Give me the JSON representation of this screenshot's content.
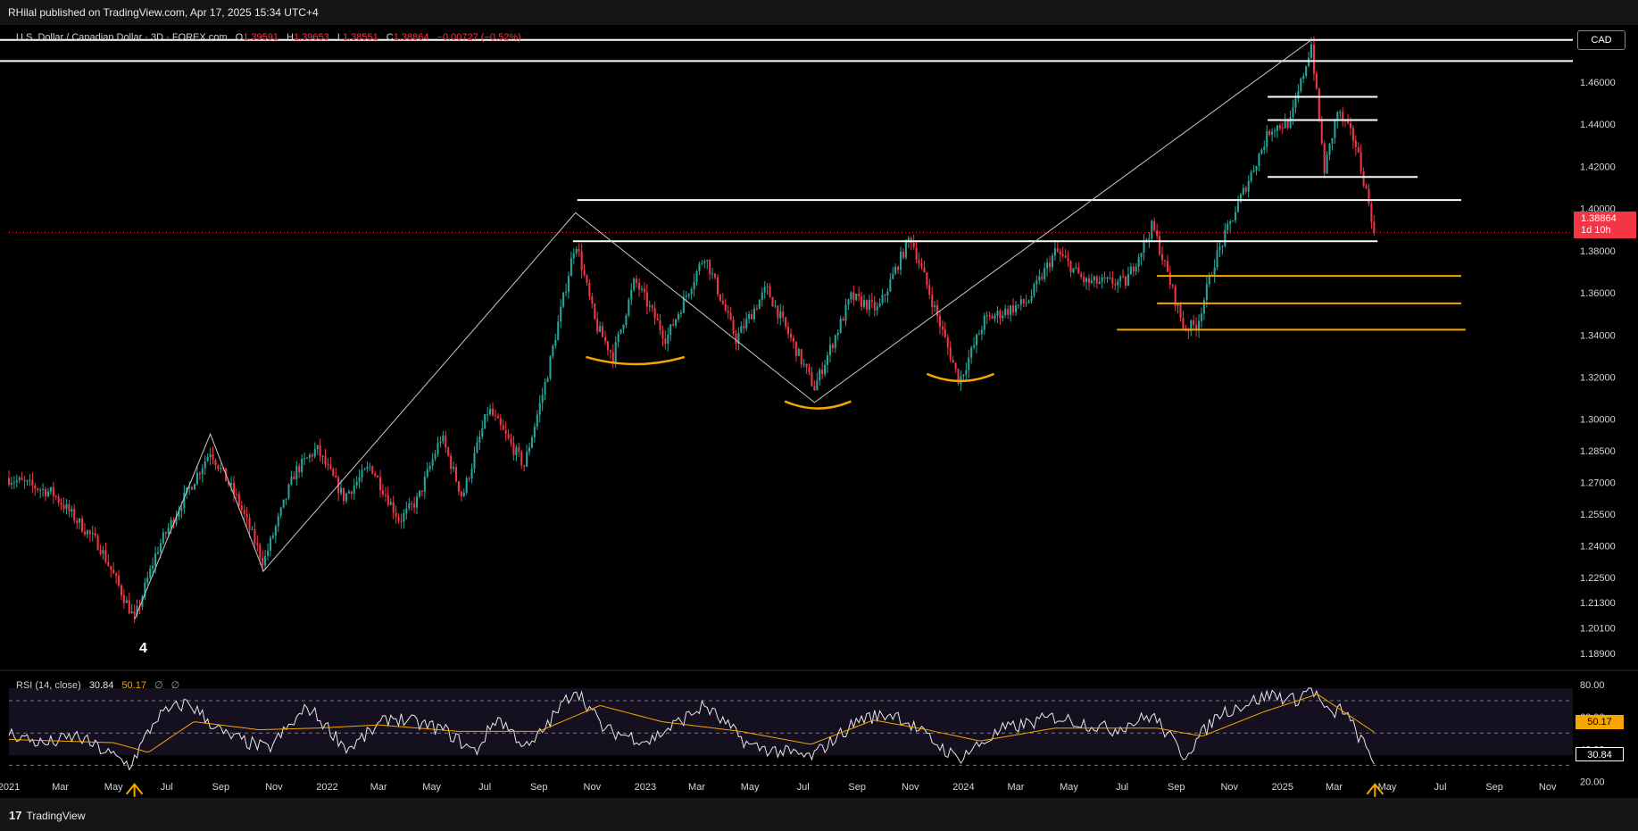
{
  "header": {
    "published": "RHilal published on TradingView.com, Apr 17, 2025 15:34 UTC+4"
  },
  "legend": {
    "symbol": "U.S. Dollar / Canadian Dollar · 3D · FOREX.com",
    "open_label": "O",
    "open": "1.39591",
    "high_label": "H",
    "high": "1.39653",
    "low_label": "L",
    "low": "1.38551",
    "close_label": "C",
    "close": "1.38864",
    "change": "−0.00727 (−0.52%)"
  },
  "currency": "CAD",
  "price_tag": {
    "price": "1.38864",
    "countdown": "1d 10h"
  },
  "wave_label": "4",
  "rsi_panel": {
    "label": "RSI (14, close)",
    "rsi_value": "30.84",
    "ma_value": "50.17",
    "extra_1": "∅",
    "extra_2": "∅",
    "levels": [
      70,
      50,
      30
    ]
  },
  "footer": {
    "brand": "TradingView",
    "logo": "17"
  },
  "colors": {
    "up": "#26a69a",
    "down": "#f23645",
    "support": "#f7a600",
    "rsi_line": "#e8e8e8",
    "rsi_ma": "#f7a600",
    "background": "#000000"
  },
  "chart_data": [
    {
      "type": "candlestick",
      "title": "U.S. Dollar / Canadian Dollar · 3D · FOREX.com",
      "x_range": [
        "2021-01-01",
        "2025-11-30"
      ],
      "y_range": [
        1.183,
        1.482
      ],
      "y_ticks": [
        "1.46000",
        "1.44000",
        "1.42000",
        "1.40000",
        "1.38000",
        "1.36000",
        "1.34000",
        "1.32000",
        "1.30000",
        "1.28500",
        "1.27000",
        "1.25500",
        "1.24000",
        "1.22500",
        "1.21300",
        "1.20100",
        "1.18900"
      ],
      "x_ticks": [
        "2021",
        "Mar",
        "May",
        "Jul",
        "Sep",
        "Nov",
        "2022",
        "Mar",
        "May",
        "Jul",
        "Sep",
        "Nov",
        "2023",
        "Mar",
        "May",
        "Jul",
        "Sep",
        "Nov",
        "2024",
        "Mar",
        "May",
        "Jul",
        "Sep",
        "Nov",
        "2025",
        "Mar",
        "May",
        "Jul",
        "Sep",
        "Nov"
      ],
      "anchors": [
        [
          "2021-01-01",
          1.272
        ],
        [
          "2021-02-20",
          1.265
        ],
        [
          "2021-03-20",
          1.252
        ],
        [
          "2021-04-15",
          1.24
        ],
        [
          "2021-05-25",
          1.205
        ],
        [
          "2021-06-20",
          1.238
        ],
        [
          "2021-07-20",
          1.262
        ],
        [
          "2021-08-20",
          1.285
        ],
        [
          "2021-09-20",
          1.262
        ],
        [
          "2021-10-20",
          1.232
        ],
        [
          "2021-11-25",
          1.275
        ],
        [
          "2021-12-20",
          1.286
        ],
        [
          "2022-01-20",
          1.263
        ],
        [
          "2022-02-20",
          1.278
        ],
        [
          "2022-03-25",
          1.252
        ],
        [
          "2022-04-15",
          1.262
        ],
        [
          "2022-05-12",
          1.292
        ],
        [
          "2022-06-05",
          1.263
        ],
        [
          "2022-07-05",
          1.305
        ],
        [
          "2022-08-15",
          1.278
        ],
        [
          "2022-09-10",
          1.32
        ],
        [
          "2022-10-13",
          1.385
        ],
        [
          "2022-11-05",
          1.345
        ],
        [
          "2022-11-25",
          1.33
        ],
        [
          "2022-12-20",
          1.366
        ],
        [
          "2023-01-25",
          1.338
        ],
        [
          "2023-03-10",
          1.378
        ],
        [
          "2023-04-15",
          1.338
        ],
        [
          "2023-05-20",
          1.362
        ],
        [
          "2023-07-14",
          1.315
        ],
        [
          "2023-08-25",
          1.358
        ],
        [
          "2023-09-25",
          1.352
        ],
        [
          "2023-11-01",
          1.387
        ],
        [
          "2023-12-27",
          1.318
        ],
        [
          "2024-01-25",
          1.347
        ],
        [
          "2024-03-15",
          1.356
        ],
        [
          "2024-04-16",
          1.38
        ],
        [
          "2024-05-20",
          1.365
        ],
        [
          "2024-07-05",
          1.365
        ],
        [
          "2024-08-05",
          1.392
        ],
        [
          "2024-09-10",
          1.343
        ],
        [
          "2024-09-25",
          1.345
        ],
        [
          "2024-10-15",
          1.375
        ],
        [
          "2024-11-15",
          1.406
        ],
        [
          "2024-12-18",
          1.438
        ],
        [
          "2025-01-10",
          1.441
        ],
        [
          "2025-02-03",
          1.478
        ],
        [
          "2025-02-18",
          1.418
        ],
        [
          "2025-03-05",
          1.446
        ],
        [
          "2025-03-25",
          1.432
        ],
        [
          "2025-04-05",
          1.412
        ],
        [
          "2025-04-17",
          1.3886
        ]
      ],
      "horizontal_levels": [
        {
          "from": "2020-12-15",
          "to": "2025-11-30",
          "y": 1.48,
          "color": "white"
        },
        {
          "from": "2020-12-15",
          "to": "2025-11-30",
          "y": 1.47,
          "color": "white"
        },
        {
          "from": "2024-12-15",
          "to": "2025-04-20",
          "y": 1.453,
          "color": "white"
        },
        {
          "from": "2024-12-15",
          "to": "2025-04-20",
          "y": 1.442,
          "color": "white"
        },
        {
          "from": "2024-12-15",
          "to": "2025-06-05",
          "y": 1.415,
          "color": "white"
        },
        {
          "from": "2022-10-15",
          "to": "2025-07-25",
          "y": 1.404,
          "color": "white"
        },
        {
          "from": "2022-10-10",
          "to": "2025-04-20",
          "y": 1.3845,
          "color": "white"
        },
        {
          "from": "2024-08-10",
          "to": "2025-07-25",
          "y": 1.368,
          "color": "orange"
        },
        {
          "from": "2024-08-10",
          "to": "2025-07-25",
          "y": 1.355,
          "color": "orange"
        },
        {
          "from": "2024-06-25",
          "to": "2025-07-30",
          "y": 1.3425,
          "color": "orange"
        }
      ],
      "trendlines": [
        {
          "points": [
            [
              "2021-05-25",
              1.205
            ],
            [
              "2021-08-20",
              1.293
            ],
            [
              "2021-10-20",
              1.228
            ],
            [
              "2022-10-13",
              1.398
            ],
            [
              "2023-07-14",
              1.308
            ],
            [
              "2025-02-03",
              1.48
            ]
          ]
        }
      ],
      "supports_arcs": [
        {
          "from": "2022-10-25",
          "to": "2023-02-15",
          "y": 1.327
        },
        {
          "from": "2023-06-10",
          "to": "2023-08-25",
          "y": 1.306
        },
        {
          "from": "2023-11-20",
          "to": "2024-02-05",
          "y": 1.319
        }
      ],
      "current_price": 1.38864
    },
    {
      "type": "line",
      "title": "RSI (14, close)",
      "ylim": [
        12,
        86
      ],
      "y_ticks": [
        80,
        60,
        40,
        20
      ],
      "series": [
        {
          "name": "RSI",
          "anchors": [
            [
              "2021-01-01",
              50
            ],
            [
              "2021-02-10",
              43
            ],
            [
              "2021-03-20",
              48
            ],
            [
              "2021-05-20",
              30
            ],
            [
              "2021-06-20",
              60
            ],
            [
              "2021-07-25",
              69
            ],
            [
              "2021-09-05",
              49
            ],
            [
              "2021-10-25",
              40
            ],
            [
              "2021-12-10",
              66
            ],
            [
              "2022-01-25",
              40
            ],
            [
              "2022-03-15",
              60
            ],
            [
              "2022-05-15",
              52
            ],
            [
              "2022-06-20",
              38
            ],
            [
              "2022-07-15",
              60
            ],
            [
              "2022-08-20",
              40
            ],
            [
              "2022-10-13",
              78
            ],
            [
              "2022-11-15",
              52
            ],
            [
              "2023-01-05",
              45
            ],
            [
              "2023-03-10",
              67
            ],
            [
              "2023-05-01",
              42
            ],
            [
              "2023-07-10",
              35
            ],
            [
              "2023-09-05",
              59
            ],
            [
              "2023-10-15",
              62
            ],
            [
              "2023-12-25",
              34
            ],
            [
              "2024-02-15",
              52
            ],
            [
              "2024-04-16",
              60
            ],
            [
              "2024-06-20",
              52
            ],
            [
              "2024-08-05",
              61
            ],
            [
              "2024-09-10",
              36
            ],
            [
              "2024-10-20",
              62
            ],
            [
              "2024-12-20",
              74
            ],
            [
              "2025-01-15",
              70
            ],
            [
              "2025-02-03",
              78
            ],
            [
              "2025-02-25",
              60
            ],
            [
              "2025-03-10",
              66
            ],
            [
              "2025-04-17",
              30.84
            ]
          ]
        },
        {
          "name": "RSI-based MA",
          "anchors": [
            [
              "2021-01-01",
              46
            ],
            [
              "2021-05-01",
              44
            ],
            [
              "2021-06-10",
              38
            ],
            [
              "2021-08-01",
              57
            ],
            [
              "2021-10-15",
              52
            ],
            [
              "2021-12-20",
              53
            ],
            [
              "2022-03-01",
              55
            ],
            [
              "2022-06-01",
              51
            ],
            [
              "2022-09-01",
              51
            ],
            [
              "2022-11-10",
              67
            ],
            [
              "2023-01-20",
              57
            ],
            [
              "2023-04-20",
              51
            ],
            [
              "2023-07-10",
              43
            ],
            [
              "2023-09-20",
              58
            ],
            [
              "2023-11-20",
              52
            ],
            [
              "2024-01-20",
              45
            ],
            [
              "2024-04-15",
              53
            ],
            [
              "2024-08-10",
              53
            ],
            [
              "2024-10-01",
              48
            ],
            [
              "2024-12-10",
              63
            ],
            [
              "2025-02-10",
              74
            ],
            [
              "2025-04-17",
              50.17
            ]
          ]
        }
      ]
    }
  ]
}
